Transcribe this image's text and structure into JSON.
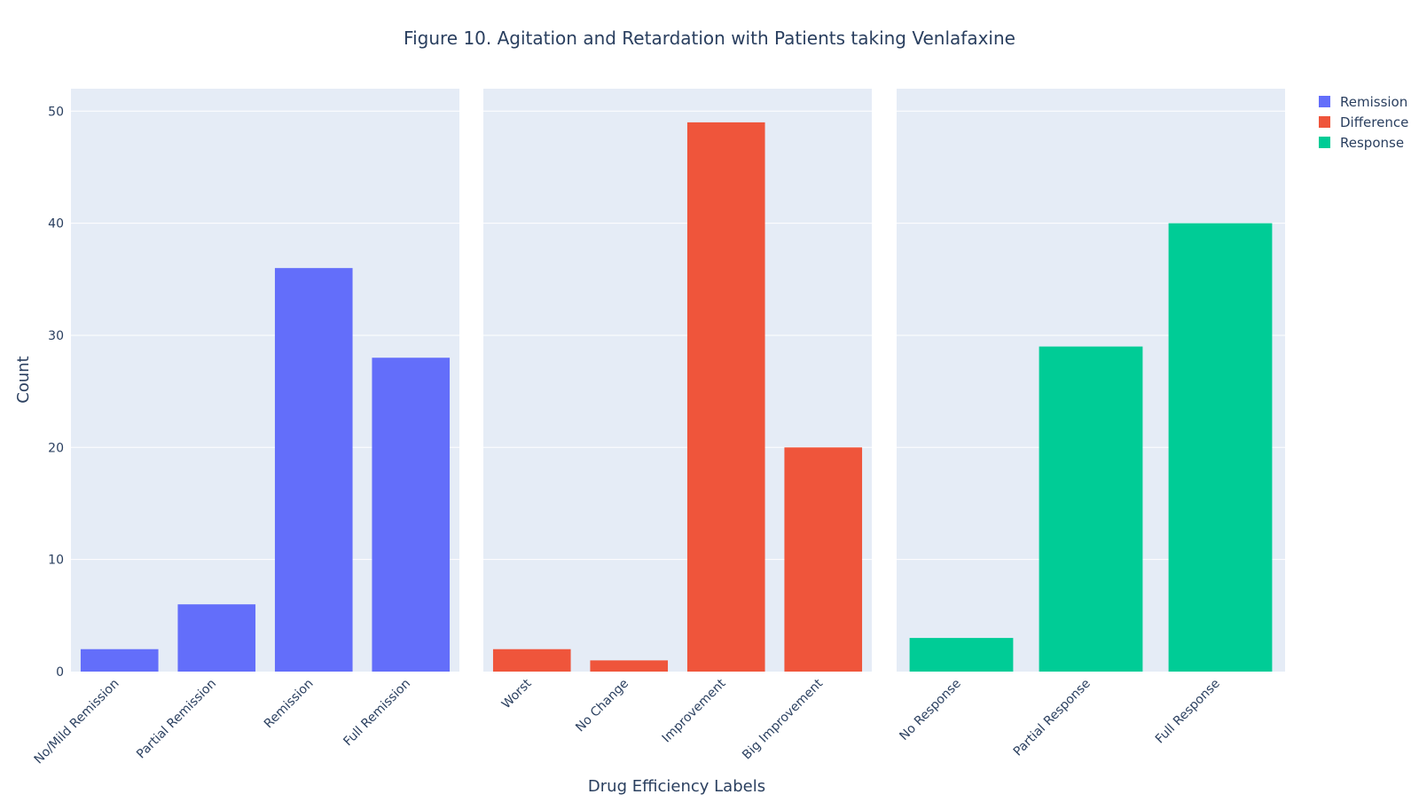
{
  "chart_data": {
    "type": "bar",
    "title": "Figure 10. Agitation and Retardation with Patients taking Venlafaxine",
    "xlabel": "Drug Efficiency Labels",
    "ylabel": "Count",
    "ylim": [
      0,
      52
    ],
    "yticks": [
      0,
      10,
      20,
      30,
      40,
      50
    ],
    "grid": true,
    "legend_position": "top-right",
    "series": [
      {
        "name": "Remission",
        "color": "#636efa",
        "categories": [
          "No/Mild Remission",
          "Partial Remission",
          "Remission",
          "Full Remission"
        ],
        "values": [
          2,
          6,
          36,
          28
        ]
      },
      {
        "name": "Difference",
        "color": "#ef553b",
        "categories": [
          "Worst",
          "No Change",
          "Improvement",
          "Big Improvement"
        ],
        "values": [
          2,
          1,
          49,
          20
        ]
      },
      {
        "name": "Response",
        "color": "#00cc96",
        "categories": [
          "No Response",
          "Partial Response",
          "Full Response"
        ],
        "values": [
          3,
          29,
          40
        ]
      }
    ],
    "plot_background": "#e5ecf6",
    "grid_color": "#ffffff"
  }
}
